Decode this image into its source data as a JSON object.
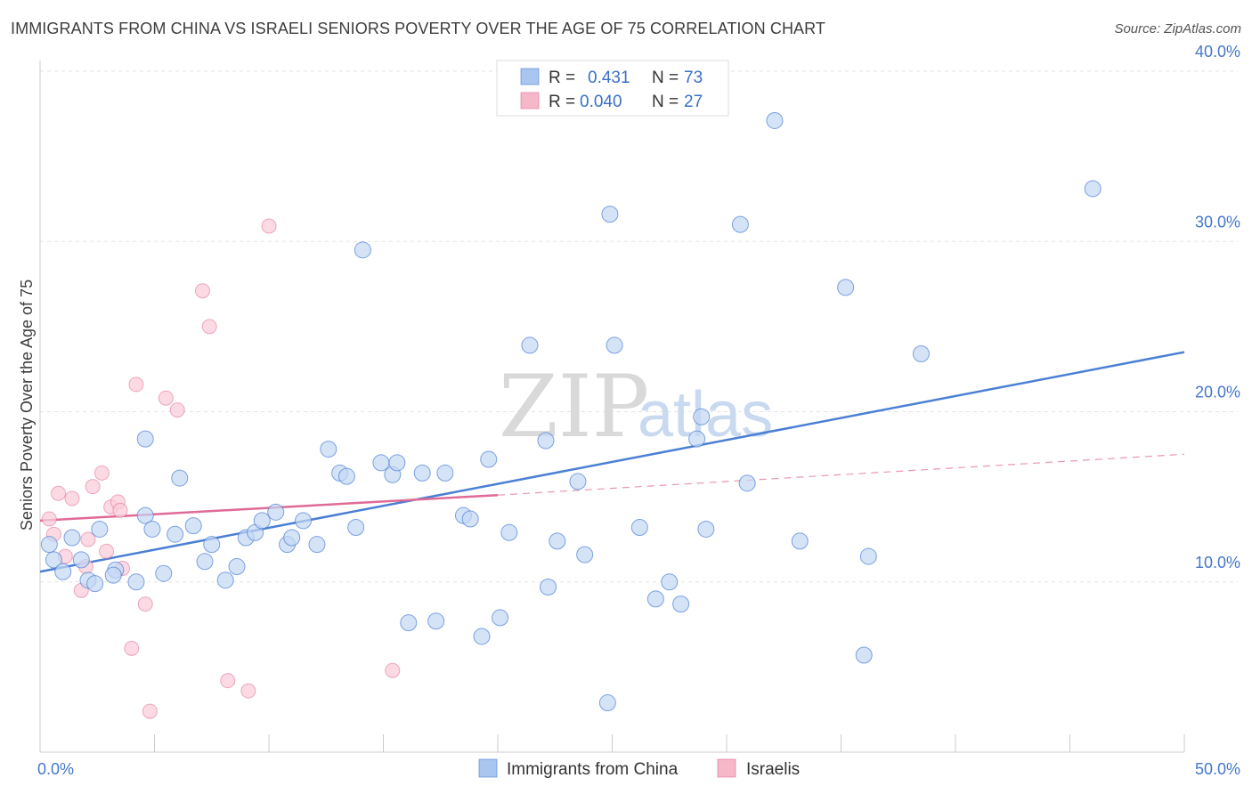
{
  "header": {
    "title": "IMMIGRANTS FROM CHINA VS ISRAELI SENIORS POVERTY OVER THE AGE OF 75 CORRELATION CHART",
    "source": "Source: ZipAtlas.com"
  },
  "watermark": {
    "part1": "ZIP",
    "part2": "atlas"
  },
  "legend_top": {
    "rows": [
      {
        "r_label": "R =",
        "r_value": "0.431",
        "n_label": "N =",
        "n_value": "73",
        "color": "#a9c6f0"
      },
      {
        "r_label": "R =",
        "r_value": "0.040",
        "n_label": "N =",
        "n_value": "27",
        "color": "#f6b7c9"
      }
    ]
  },
  "legend_bottom": [
    {
      "label": "Immigrants from China",
      "color": "#a9c6f0"
    },
    {
      "label": "Israelis",
      "color": "#f6b7c9"
    }
  ],
  "chart_data": {
    "type": "scatter",
    "ylabel": "Seniors Poverty Over the Age of 75",
    "xlim": [
      0,
      50
    ],
    "ylim": [
      0,
      40
    ],
    "x_tick_labels": {
      "min": "0.0%",
      "max": "50.0%"
    },
    "y_ticks": [
      {
        "value": 10,
        "label": "10.0%"
      },
      {
        "value": 20,
        "label": "20.0%"
      },
      {
        "value": 30,
        "label": "30.0%"
      },
      {
        "value": 40,
        "label": "40.0%"
      }
    ],
    "grid": true,
    "colors": {
      "china": "#4a7fd4",
      "china_fill": "#c3d7f4",
      "israelis": "#e06a96",
      "israelis_fill": "#f9cdd9"
    },
    "series": [
      {
        "name": "Immigrants from China",
        "trend": {
          "x0": 0,
          "y0": 10.6,
          "x1": 50,
          "y1": 23.5
        },
        "points": [
          [
            0.4,
            12.2
          ],
          [
            0.6,
            11.3
          ],
          [
            1.0,
            10.6
          ],
          [
            1.4,
            12.6
          ],
          [
            1.8,
            11.3
          ],
          [
            2.1,
            10.1
          ],
          [
            2.4,
            9.9
          ],
          [
            3.3,
            10.7
          ],
          [
            2.6,
            13.1
          ],
          [
            3.2,
            10.4
          ],
          [
            4.2,
            10.0
          ],
          [
            4.6,
            13.9
          ],
          [
            4.9,
            13.1
          ],
          [
            4.6,
            18.4
          ],
          [
            5.4,
            10.5
          ],
          [
            5.9,
            12.8
          ],
          [
            6.7,
            13.3
          ],
          [
            6.1,
            16.1
          ],
          [
            7.2,
            11.2
          ],
          [
            7.5,
            12.2
          ],
          [
            8.6,
            10.9
          ],
          [
            8.1,
            10.1
          ],
          [
            9.0,
            12.6
          ],
          [
            9.4,
            12.9
          ],
          [
            9.7,
            13.6
          ],
          [
            10.3,
            14.1
          ],
          [
            10.8,
            12.2
          ],
          [
            11.0,
            12.6
          ],
          [
            11.5,
            13.6
          ],
          [
            12.1,
            12.2
          ],
          [
            12.6,
            17.8
          ],
          [
            13.1,
            16.4
          ],
          [
            13.4,
            16.2
          ],
          [
            13.8,
            13.2
          ],
          [
            14.1,
            29.5
          ],
          [
            14.9,
            17.0
          ],
          [
            15.4,
            16.3
          ],
          [
            15.6,
            17.0
          ],
          [
            16.1,
            7.6
          ],
          [
            16.7,
            16.4
          ],
          [
            17.3,
            7.7
          ],
          [
            17.7,
            16.4
          ],
          [
            18.5,
            13.9
          ],
          [
            18.8,
            13.7
          ],
          [
            19.3,
            6.8
          ],
          [
            19.6,
            17.2
          ],
          [
            20.1,
            7.9
          ],
          [
            20.5,
            12.9
          ],
          [
            21.4,
            23.9
          ],
          [
            22.1,
            18.3
          ],
          [
            22.2,
            9.7
          ],
          [
            22.6,
            12.4
          ],
          [
            23.5,
            15.9
          ],
          [
            23.8,
            11.6
          ],
          [
            24.8,
            2.9
          ],
          [
            24.9,
            31.6
          ],
          [
            25.1,
            23.9
          ],
          [
            26.2,
            13.2
          ],
          [
            26.9,
            9.0
          ],
          [
            27.5,
            10.0
          ],
          [
            28.0,
            8.7
          ],
          [
            28.7,
            18.4
          ],
          [
            28.9,
            19.7
          ],
          [
            29.1,
            13.1
          ],
          [
            30.6,
            31.0
          ],
          [
            30.9,
            15.8
          ],
          [
            32.1,
            37.1
          ],
          [
            33.2,
            12.4
          ],
          [
            35.2,
            27.3
          ],
          [
            36.0,
            5.7
          ],
          [
            36.2,
            11.5
          ],
          [
            38.5,
            23.4
          ],
          [
            46.0,
            33.1
          ]
        ]
      },
      {
        "name": "Israelis",
        "trend": {
          "x0": 0,
          "y0": 13.6,
          "x1": 20,
          "y1": 15.1
        },
        "trend_ext": {
          "x0": 20,
          "y0": 15.1,
          "x1": 50,
          "y1": 17.5
        },
        "points": [
          [
            0.4,
            13.7
          ],
          [
            0.6,
            12.8
          ],
          [
            0.8,
            15.2
          ],
          [
            1.1,
            11.5
          ],
          [
            1.4,
            14.9
          ],
          [
            1.8,
            9.5
          ],
          [
            2.0,
            10.9
          ],
          [
            2.1,
            12.5
          ],
          [
            2.7,
            16.4
          ],
          [
            2.9,
            11.8
          ],
          [
            3.1,
            14.4
          ],
          [
            3.4,
            14.7
          ],
          [
            3.5,
            14.2
          ],
          [
            3.6,
            10.8
          ],
          [
            4.0,
            6.1
          ],
          [
            4.2,
            21.6
          ],
          [
            4.6,
            8.7
          ],
          [
            4.8,
            2.4
          ],
          [
            5.5,
            20.8
          ],
          [
            6.0,
            20.1
          ],
          [
            7.1,
            27.1
          ],
          [
            7.4,
            25.0
          ],
          [
            8.2,
            4.2
          ],
          [
            9.1,
            3.6
          ],
          [
            10.0,
            30.9
          ],
          [
            15.4,
            4.8
          ],
          [
            2.3,
            15.6
          ]
        ]
      }
    ]
  }
}
